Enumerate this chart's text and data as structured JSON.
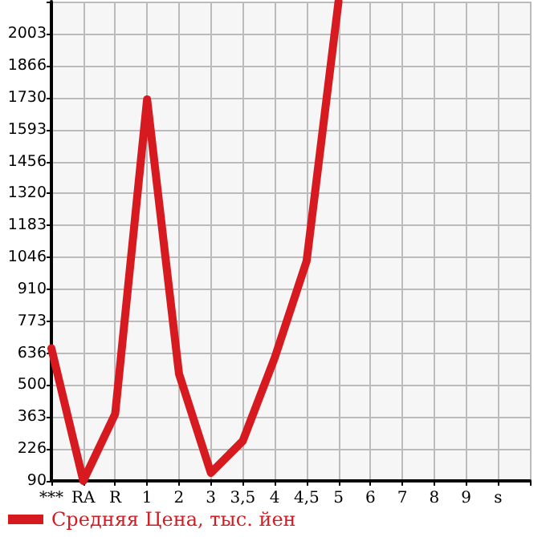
{
  "chart_data": {
    "type": "line",
    "categories": [
      "***",
      "RA",
      "R",
      "1",
      "2",
      "3",
      "3,5",
      "4",
      "4,5",
      "5",
      "6",
      "7",
      "8",
      "9",
      "s",
      null
    ],
    "series": [
      {
        "name": "Средняя Цена, тыс. йен",
        "color": "#d71920",
        "values": [
          657,
          90,
          377,
          1722,
          548,
          124,
          261,
          616,
          1030,
          2140,
          null,
          null,
          null,
          null,
          null,
          null
        ]
      }
    ],
    "ylim": [
      90,
      2140
    ],
    "yticks": [
      90,
      226,
      363,
      500,
      636,
      773,
      910,
      1046,
      1183,
      1320,
      1456,
      1593,
      1730,
      1866,
      2003,
      {
        "value": 2140,
        "label": null
      }
    ],
    "grid": true,
    "legend": "bottom left",
    "marker": "none",
    "line_style": "solid"
  }
}
